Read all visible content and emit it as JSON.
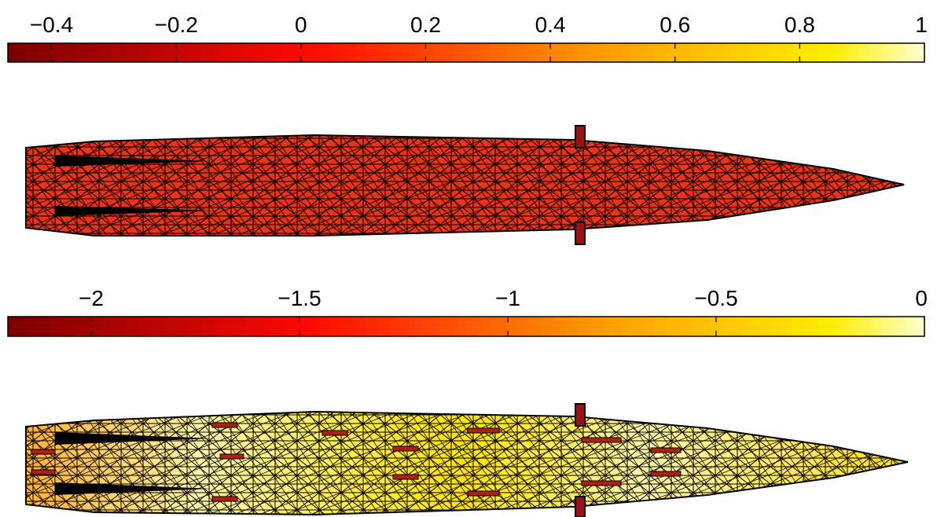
{
  "chart_data": [
    {
      "type": "colorbar",
      "colormap": "hot",
      "xlim": [
        -0.47,
        1
      ],
      "xticks": [
        {
          "value": -0.4,
          "label": "−0.4"
        },
        {
          "value": -0.2,
          "label": "−0.2"
        },
        0,
        0.2,
        0.4,
        0.6,
        0.8,
        1
      ]
    },
    {
      "type": "colorbar",
      "colormap": "hot",
      "xlim": [
        -2.2,
        0
      ],
      "xticks": [
        {
          "value": -2,
          "label": "−2"
        },
        {
          "value": -1.5,
          "label": "−1.5"
        },
        {
          "value": -1,
          "label": "−1"
        },
        {
          "value": -0.5,
          "label": "−0.5"
        },
        0
      ]
    }
  ]
}
